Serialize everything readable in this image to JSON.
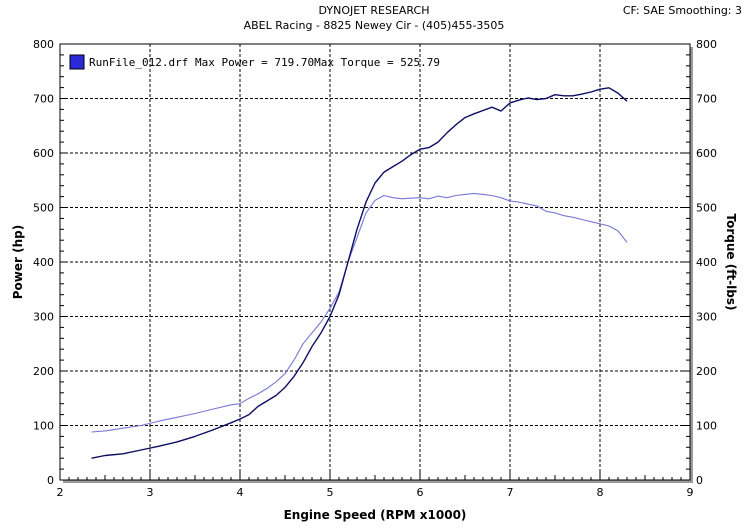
{
  "header": {
    "title": "DYNOJET RESEARCH",
    "subtitle": "ABEL Racing - 8825 Newey Cir - (405)455-3505",
    "status": "CF: SAE  Smoothing: 3"
  },
  "legend": {
    "text": "RunFile_012.drf Max Power = 719.70Max Torque = 525.79"
  },
  "colors": {
    "power": "#0d0d66",
    "torque": "#7878d8",
    "grid": "#000000",
    "swatch": "#2a2ad8"
  },
  "chart_data": {
    "type": "line",
    "title": "DYNOJET RESEARCH",
    "xlabel": "Engine Speed (RPM x1000)",
    "ylabel_left": "Power (hp)",
    "ylabel_right": "Torque (ft-lbs)",
    "xlim": [
      2,
      9
    ],
    "ylim": [
      0,
      800
    ],
    "x_ticks": [
      2,
      3,
      4,
      5,
      6,
      7,
      8,
      9
    ],
    "y_ticks": [
      0,
      100,
      200,
      300,
      400,
      500,
      600,
      700,
      800
    ],
    "grid": true,
    "legend_placement": "top-left",
    "series": [
      {
        "name": "Max Power = 719.70",
        "x": [
          2.35,
          2.5,
          2.7,
          2.9,
          3.1,
          3.3,
          3.5,
          3.7,
          3.9,
          4.0,
          4.1,
          4.2,
          4.3,
          4.4,
          4.5,
          4.6,
          4.7,
          4.8,
          4.9,
          5.0,
          5.1,
          5.2,
          5.3,
          5.4,
          5.5,
          5.6,
          5.7,
          5.8,
          5.9,
          6.0,
          6.1,
          6.2,
          6.3,
          6.4,
          6.5,
          6.6,
          6.7,
          6.8,
          6.9,
          7.0,
          7.1,
          7.2,
          7.3,
          7.4,
          7.5,
          7.6,
          7.7,
          7.8,
          7.9,
          8.0,
          8.1,
          8.2,
          8.3
        ],
        "y": [
          40,
          45,
          48,
          55,
          62,
          70,
          80,
          92,
          105,
          112,
          120,
          135,
          145,
          155,
          170,
          190,
          215,
          245,
          270,
          300,
          340,
          400,
          460,
          510,
          545,
          565,
          575,
          585,
          597,
          607,
          610,
          620,
          637,
          652,
          665,
          672,
          678,
          684,
          677,
          692,
          697,
          701,
          698,
          700,
          707,
          705,
          705,
          708,
          712,
          717,
          719.7,
          710,
          695
        ]
      },
      {
        "name": "Max Torque = 525.79",
        "x": [
          2.35,
          2.5,
          2.7,
          2.9,
          3.1,
          3.3,
          3.5,
          3.7,
          3.9,
          4.0,
          4.1,
          4.2,
          4.3,
          4.4,
          4.5,
          4.6,
          4.7,
          4.8,
          4.9,
          5.0,
          5.1,
          5.2,
          5.3,
          5.4,
          5.5,
          5.6,
          5.7,
          5.8,
          5.9,
          6.0,
          6.1,
          6.2,
          6.3,
          6.4,
          6.5,
          6.6,
          6.7,
          6.8,
          6.9,
          7.0,
          7.1,
          7.2,
          7.3,
          7.4,
          7.5,
          7.6,
          7.7,
          7.8,
          7.9,
          8.0,
          8.1,
          8.2,
          8.3
        ],
        "y": [
          88,
          90,
          95,
          100,
          108,
          115,
          122,
          130,
          138,
          140,
          150,
          158,
          168,
          180,
          195,
          220,
          250,
          270,
          290,
          315,
          345,
          400,
          445,
          490,
          513,
          522,
          518,
          516,
          517,
          518,
          516,
          521,
          518,
          522,
          524,
          525.79,
          524,
          522,
          518,
          512,
          510,
          506,
          503,
          493,
          490,
          485,
          482,
          478,
          474,
          470,
          466,
          457,
          436
        ]
      }
    ]
  }
}
